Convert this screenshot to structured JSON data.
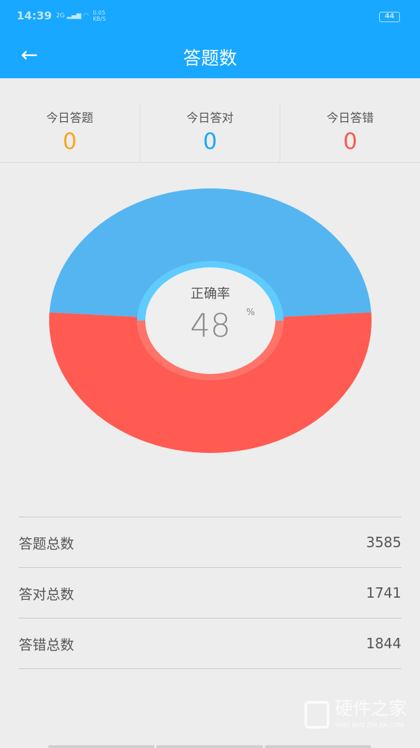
{
  "status_bar": {
    "time": "14:39",
    "signal": "2G",
    "net_speed": "0.05",
    "net_unit": "KB/S",
    "battery": "44"
  },
  "header": {
    "title": "答题数",
    "back_icon": "arrow-left-icon"
  },
  "today": [
    {
      "label": "今日答题",
      "value": "0",
      "color": "#f5a623"
    },
    {
      "label": "今日答对",
      "value": "0",
      "color": "#1ea7f5"
    },
    {
      "label": "今日答错",
      "value": "0",
      "color": "#f25a52"
    }
  ],
  "chart": {
    "center_label": "正确率",
    "percent": "48",
    "unit": "%",
    "correct_color": "#55b5f0",
    "wrong_color": "#ff5b52",
    "correct_fraction": 0.48
  },
  "totals": [
    {
      "label": "答题总数",
      "value": "3585"
    },
    {
      "label": "答对总数",
      "value": "1741"
    },
    {
      "label": "答错总数",
      "value": "1844"
    }
  ],
  "watermark": {
    "cn": "硬件之家",
    "en": "YING JIAN ZHI JIA.COM"
  }
}
